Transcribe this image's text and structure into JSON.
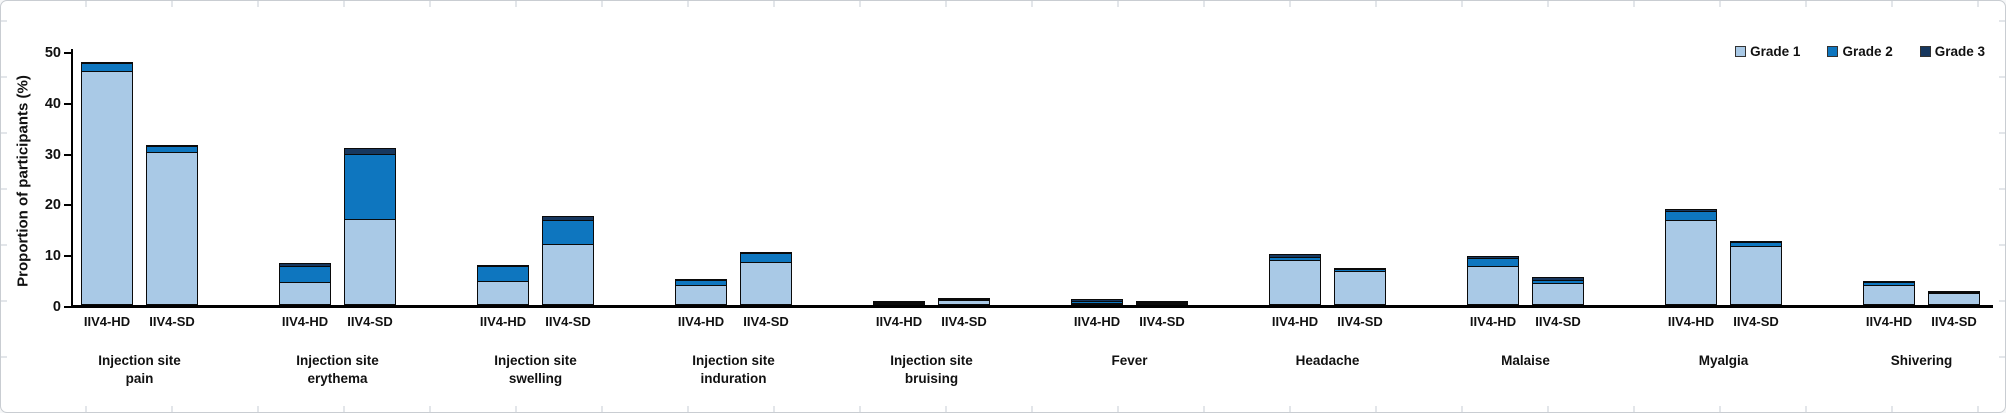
{
  "chart_data": {
    "type": "bar",
    "stacked": true,
    "ylabel": "Proportion of participants (%)",
    "ylim": [
      0,
      50
    ],
    "yticks": [
      0,
      10,
      20,
      30,
      40,
      50
    ],
    "grid": false,
    "legend_position": "top-right",
    "arms": [
      "IIV4-HD",
      "IIV4-SD"
    ],
    "categories": [
      "Injection site\npain",
      "Injection site\nerythema",
      "Injection site\nswelling",
      "Injection site\ninduration",
      "Injection site\nbruising",
      "Fever",
      "Headache",
      "Malaise",
      "Myalgia",
      "Shivering"
    ],
    "series": [
      {
        "name": "Grade 1",
        "color": "#A9C9E6",
        "iiv4_hd": [
          46.0,
          4.5,
          4.7,
          4.0,
          0.4,
          0.3,
          8.9,
          7.7,
          16.7,
          3.9
        ],
        "iiv4_sd": [
          30.2,
          16.9,
          12.0,
          8.5,
          1.0,
          0.1,
          6.6,
          4.3,
          11.6,
          2.3
        ]
      },
      {
        "name": "Grade 2",
        "color": "#0E76BF",
        "iiv4_hd": [
          1.6,
          3.2,
          2.9,
          0.9,
          0.2,
          0.4,
          0.6,
          1.6,
          1.8,
          0.7
        ],
        "iiv4_sd": [
          1.1,
          12.8,
          4.7,
          1.8,
          0.1,
          0.1,
          0.4,
          0.6,
          0.8,
          0.2
        ]
      },
      {
        "name": "Grade 3",
        "color": "#17375E",
        "iiv4_hd": [
          0.2,
          0.5,
          0.3,
          0.1,
          0.2,
          0.3,
          0.5,
          0.3,
          0.5,
          0.2
        ],
        "iiv4_sd": [
          0.2,
          1.3,
          0.8,
          0.1,
          0.1,
          0.1,
          0.2,
          0.6,
          0.1,
          0.1
        ]
      }
    ],
    "totals_iiv4_hd": [
      47.8,
      8.2,
      7.9,
      5.0,
      0.8,
      1.0,
      10.0,
      9.6,
      19.0,
      4.8
    ],
    "totals_iiv4_sd": [
      31.5,
      31.0,
      17.5,
      10.4,
      1.2,
      0.3,
      7.2,
      5.5,
      12.5,
      2.6
    ]
  }
}
